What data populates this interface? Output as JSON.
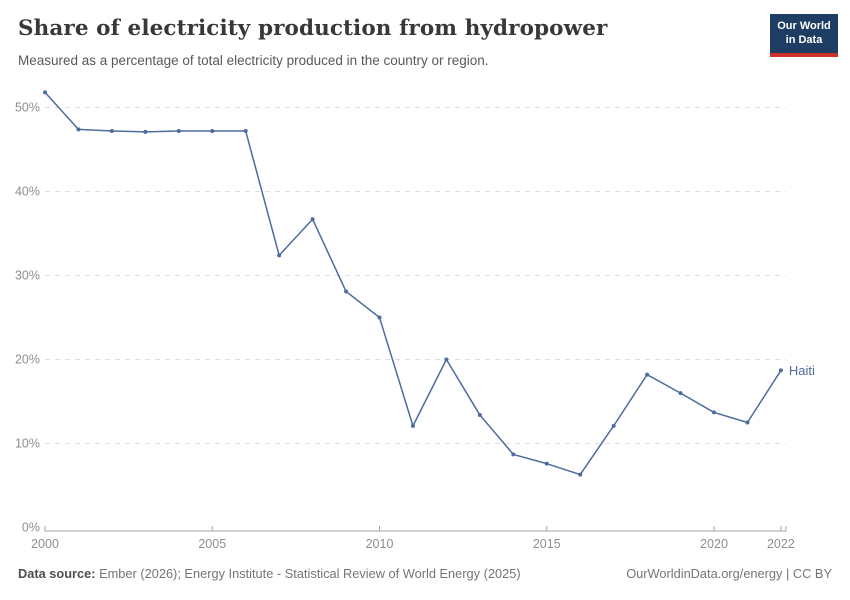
{
  "header": {
    "title": "Share of electricity production from hydropower",
    "subtitle": "Measured as a percentage of total electricity produced in the country or region.",
    "logo": {
      "line1": "Our World",
      "line2": "in Data",
      "bg_color": "#1d3d63",
      "accent_color": "#cd322a"
    }
  },
  "chart_data": {
    "type": "line",
    "title": "Share of electricity production from hydropower",
    "xlabel": "",
    "ylabel": "",
    "x": [
      2000,
      2001,
      2002,
      2003,
      2004,
      2005,
      2006,
      2007,
      2008,
      2009,
      2010,
      2011,
      2012,
      2013,
      2014,
      2015,
      2016,
      2017,
      2018,
      2019,
      2020,
      2021,
      2022
    ],
    "series": [
      {
        "name": "Haiti",
        "color": "#4c6b9e",
        "values": [
          51.8,
          47.4,
          47.2,
          47.1,
          47.2,
          47.2,
          47.2,
          32.4,
          36.7,
          28.1,
          25.0,
          12.1,
          20.0,
          13.4,
          8.7,
          7.6,
          6.3,
          12.1,
          18.2,
          16.0,
          13.7,
          12.5,
          18.7
        ]
      }
    ],
    "xlim": [
      2000,
      2022
    ],
    "ylim": [
      0,
      52
    ],
    "yticks": [
      0,
      10,
      20,
      30,
      40,
      50
    ],
    "ytick_suffix": "%",
    "xticks": [
      2000,
      2005,
      2010,
      2015,
      2020,
      2022
    ],
    "grid": "horizontal-dashed",
    "legend_position": "end-of-line-label",
    "end_label": "Haiti"
  },
  "footer": {
    "source_label": "Data source:",
    "source_text": " Ember (2026); Energy Institute - Statistical Review of World Energy (2025)",
    "rights_text": "OurWorldinData.org/energy | CC BY"
  }
}
